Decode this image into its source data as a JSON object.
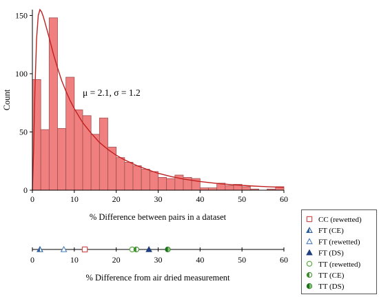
{
  "chart_data": [
    {
      "type": "bar",
      "xlabel": "% Difference between pairs in a dataset",
      "ylabel": "Count",
      "xlim": [
        0,
        60
      ],
      "ylim": [
        0,
        155
      ],
      "xticks": [
        0,
        10,
        20,
        30,
        40,
        50,
        60
      ],
      "yticks": [
        0,
        50,
        100,
        150
      ],
      "annotation": "μ = 2.1, σ = 1.2",
      "bar_color": "#f08080",
      "bar_edge_color": "#a05050",
      "curve_color": "#c0201f",
      "bin_width": 2,
      "bins": [
        0,
        2,
        4,
        6,
        8,
        10,
        12,
        14,
        16,
        18,
        20,
        22,
        24,
        26,
        28,
        30,
        32,
        34,
        36,
        38,
        40,
        42,
        44,
        46,
        48,
        50,
        52,
        54,
        56,
        58
      ],
      "values": [
        95,
        52,
        148,
        53,
        97,
        69,
        64,
        48,
        62,
        37,
        28,
        24,
        21,
        18,
        16,
        11,
        10,
        13,
        11,
        10,
        2,
        2,
        6,
        4,
        5,
        3,
        1,
        0,
        1,
        3
      ],
      "fit_curve": {
        "x": [
          0,
          0.3,
          0.6,
          1.0,
          1.4,
          1.8,
          2.2,
          2.6,
          3,
          4,
          5,
          6,
          7,
          8,
          9,
          10,
          12,
          14,
          16,
          18,
          20,
          22,
          25,
          28,
          30,
          33,
          36,
          40,
          44,
          48,
          52,
          56,
          60
        ],
        "y": [
          0,
          35,
          85,
          130,
          150,
          155,
          153,
          149,
          144,
          131,
          117,
          105,
          94,
          85,
          77,
          70,
          58,
          49,
          41,
          35,
          30,
          26,
          21,
          17,
          14.5,
          11.8,
          9.6,
          7.4,
          5.8,
          4.6,
          3.7,
          3.0,
          2.4
        ]
      }
    },
    {
      "type": "scatter",
      "xlabel": "% Difference from air dried measurement",
      "xlim": [
        0,
        60
      ],
      "xticks": [
        0,
        10,
        20,
        30,
        40,
        50,
        60
      ],
      "series": [
        {
          "name": "CC (rewetted)",
          "x": 12.5,
          "marker": "square-open",
          "color": "#d05050"
        },
        {
          "name": "FT (CE)",
          "x": 1.8,
          "marker": "triangle-half",
          "color": "#2f5f9f"
        },
        {
          "name": "FT (rewetted)",
          "x": 7.5,
          "marker": "triangle-open",
          "color": "#4a7fc0"
        },
        {
          "name": "FT (DS)",
          "x": 27.8,
          "marker": "triangle-filled",
          "color": "#1f3f7f"
        },
        {
          "name": "TT (rewetted)",
          "x": 23.8,
          "marker": "circle-open",
          "color": "#5aaa40"
        },
        {
          "name": "TT (CE)",
          "x": 24.8,
          "marker": "circle-half",
          "color": "#3f8f2f"
        },
        {
          "name": "TT (DS)",
          "x": 32.3,
          "marker": "circle-half-dark",
          "color": "#1f6f1f"
        }
      ]
    }
  ]
}
